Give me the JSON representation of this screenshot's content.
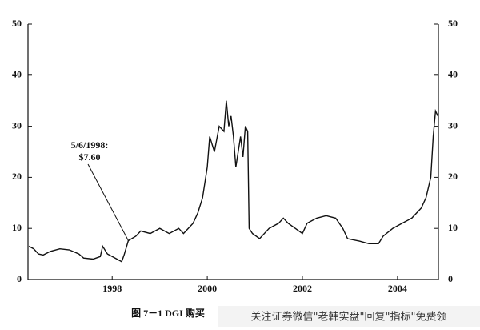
{
  "chart_data": {
    "type": "line",
    "x": [
      1996.25,
      1996.35,
      1996.45,
      1996.55,
      1996.7,
      1996.9,
      1997.1,
      1997.3,
      1997.4,
      1997.6,
      1997.75,
      1997.8,
      1997.9,
      1998.0,
      1998.1,
      1998.2,
      1998.25,
      1998.34,
      1998.5,
      1998.6,
      1998.8,
      1999.0,
      1999.2,
      1999.4,
      1999.5,
      1999.7,
      1999.8,
      1999.9,
      2000.0,
      2000.05,
      2000.15,
      2000.25,
      2000.35,
      2000.4,
      2000.45,
      2000.5,
      2000.55,
      2000.6,
      2000.7,
      2000.75,
      2000.8,
      2000.85,
      2000.88,
      2000.95,
      2001.1,
      2001.3,
      2001.5,
      2001.6,
      2001.7,
      2001.85,
      2002.0,
      2002.1,
      2002.3,
      2002.5,
      2002.7,
      2002.85,
      2002.95,
      2003.2,
      2003.4,
      2003.6,
      2003.7,
      2003.9,
      2004.1,
      2004.3,
      2004.5,
      2004.6,
      2004.7,
      2004.75,
      2004.8,
      2004.85
    ],
    "series": [
      {
        "color": "#111111",
        "values": [
          6.5,
          6,
          5,
          4.8,
          5.5,
          6,
          5.8,
          5,
          4.2,
          4,
          4.5,
          6.5,
          5,
          4.5,
          4,
          3.5,
          4.8,
          7.6,
          8.5,
          9.5,
          9,
          10,
          9,
          10,
          9,
          11,
          13,
          16,
          22,
          28,
          25,
          30,
          29,
          35,
          30,
          32,
          28,
          22,
          28,
          24,
          30,
          29,
          10,
          9,
          8,
          10,
          11,
          12,
          11,
          10,
          9,
          11,
          12,
          12.5,
          12,
          10,
          8,
          7.5,
          7,
          7,
          8.5,
          10,
          11,
          12,
          14,
          16,
          20,
          28,
          33,
          32
        ]
      }
    ],
    "xlim": [
      1996.23,
      2004.86
    ],
    "xticks": [
      1998,
      2000,
      2002,
      2004
    ],
    "ylim": [
      0,
      50
    ],
    "yticks": [
      0,
      10,
      20,
      30,
      40,
      50
    ],
    "y2lim": [
      0,
      50
    ],
    "y2ticks": [
      0,
      10,
      20,
      30,
      40,
      50
    ],
    "annotation": {
      "lines": [
        "5/6/1998:",
        "$7.60"
      ],
      "x": 1998.34,
      "y": 7.6
    },
    "caption": "图 7－1  DGI 购买",
    "watermark": "关注证券微信\"老韩实盘\"回复\"指标\"免费领"
  }
}
